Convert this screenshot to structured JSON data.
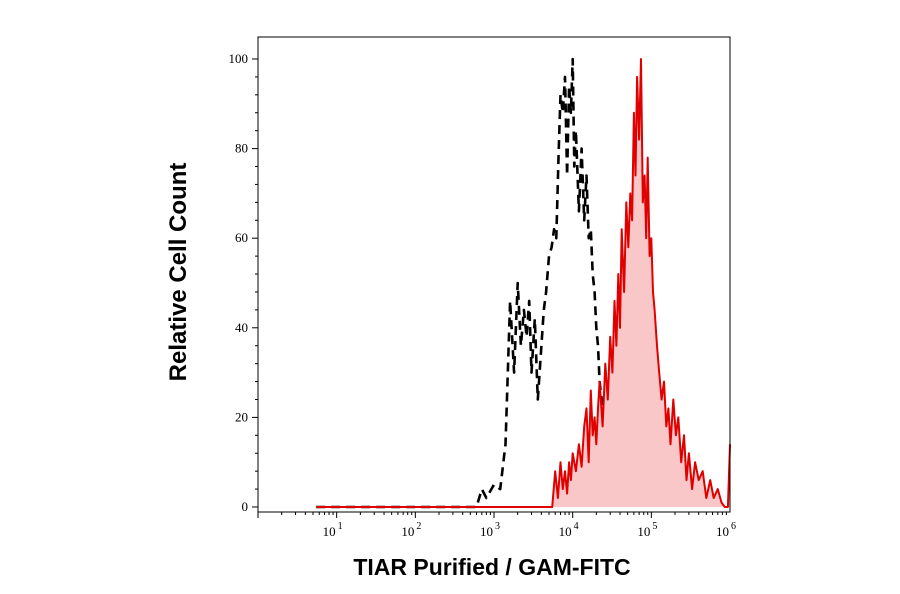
{
  "chart_data": {
    "type": "area",
    "xlabel": "TIAR Purified / GAM-FITC",
    "ylabel": "Relative Cell Count",
    "x_scale": "log10",
    "xlim": [
      1,
      1000000
    ],
    "ylim": [
      0,
      100
    ],
    "x_ticks": [
      {
        "base": "10",
        "exp": "1",
        "value": 10
      },
      {
        "base": "10",
        "exp": "2",
        "value": 100
      },
      {
        "base": "10",
        "exp": "3",
        "value": 1000
      },
      {
        "base": "10",
        "exp": "4",
        "value": 10000
      },
      {
        "base": "10",
        "exp": "5",
        "value": 100000
      },
      {
        "base": "10",
        "exp": "6",
        "value": 1000000
      }
    ],
    "y_ticks": [
      {
        "label": "0",
        "value": 0
      },
      {
        "label": "20",
        "value": 20
      },
      {
        "label": "40",
        "value": 40
      },
      {
        "label": "60",
        "value": 60
      },
      {
        "label": "80",
        "value": 80
      },
      {
        "label": "100",
        "value": 100
      }
    ],
    "grid": false,
    "legend": "none",
    "series": [
      {
        "style": "dashed",
        "color": "#000000",
        "fill": "none",
        "x": [
          5.5,
          600,
          700,
          800,
          1000,
          1200,
          1400,
          1600,
          1800,
          2000,
          2200,
          2400,
          2600,
          2800,
          3000,
          3300,
          3600,
          4000,
          4300,
          4600,
          5000,
          5400,
          5800,
          6200,
          6600,
          7000,
          7500,
          8000,
          8500,
          9000,
          9500,
          10000,
          10500,
          11000,
          12000,
          13000,
          14000,
          15000,
          16000,
          17000,
          18000,
          19000,
          20000,
          21000,
          22000,
          24000,
          26000,
          28000,
          30000,
          33000,
          36000,
          40000,
          45000,
          50000,
          55000,
          60000,
          65000,
          70000,
          75000,
          80000
        ],
        "y": [
          0,
          0,
          4,
          2,
          5,
          4,
          14,
          46,
          30,
          50,
          36,
          44,
          38,
          46,
          30,
          42,
          24,
          36,
          44,
          48,
          56,
          58,
          62,
          60,
          78,
          92,
          88,
          96,
          74,
          94,
          88,
          100,
          76,
          84,
          66,
          80,
          64,
          74,
          60,
          62,
          52,
          48,
          40,
          36,
          28,
          22,
          16,
          18,
          12,
          14,
          8,
          10,
          6,
          8,
          4,
          6,
          2,
          4,
          1,
          0
        ]
      },
      {
        "style": "solid",
        "color": "#e00000",
        "fill": "#f9c7c7",
        "x": [
          5.5,
          5500,
          6000,
          6500,
          7000,
          7500,
          8000,
          8500,
          9000,
          9500,
          10000,
          11000,
          12000,
          13000,
          14000,
          15000,
          16000,
          17000,
          18000,
          19000,
          20000,
          21000,
          22000,
          24000,
          26000,
          28000,
          30000,
          32000,
          34000,
          36000,
          38000,
          40000,
          42000,
          45000,
          48000,
          51000,
          54000,
          57000,
          60000,
          63000,
          66000,
          70000,
          74000,
          78000,
          82000,
          86000,
          90000,
          95000,
          100000,
          105000,
          110000,
          118000,
          126000,
          135000,
          145000,
          155000,
          165000,
          175000,
          190000,
          205000,
          220000,
          240000,
          260000,
          280000,
          300000,
          330000,
          360000,
          400000,
          450000,
          500000,
          560000,
          620000,
          700000,
          780000,
          860000,
          940000,
          1000000
        ],
        "y": [
          0,
          0,
          8,
          2,
          10,
          4,
          8,
          3,
          10,
          6,
          12,
          8,
          14,
          9,
          18,
          22,
          10,
          26,
          16,
          20,
          14,
          22,
          28,
          18,
          32,
          24,
          38,
          30,
          46,
          36,
          52,
          40,
          62,
          48,
          68,
          58,
          70,
          64,
          88,
          74,
          96,
          82,
          100,
          68,
          74,
          60,
          78,
          56,
          60,
          48,
          44,
          36,
          30,
          24,
          28,
          18,
          22,
          14,
          24,
          16,
          20,
          10,
          16,
          6,
          12,
          4,
          10,
          6,
          8,
          2,
          6,
          2,
          4,
          1,
          0,
          0,
          14
        ]
      }
    ]
  }
}
